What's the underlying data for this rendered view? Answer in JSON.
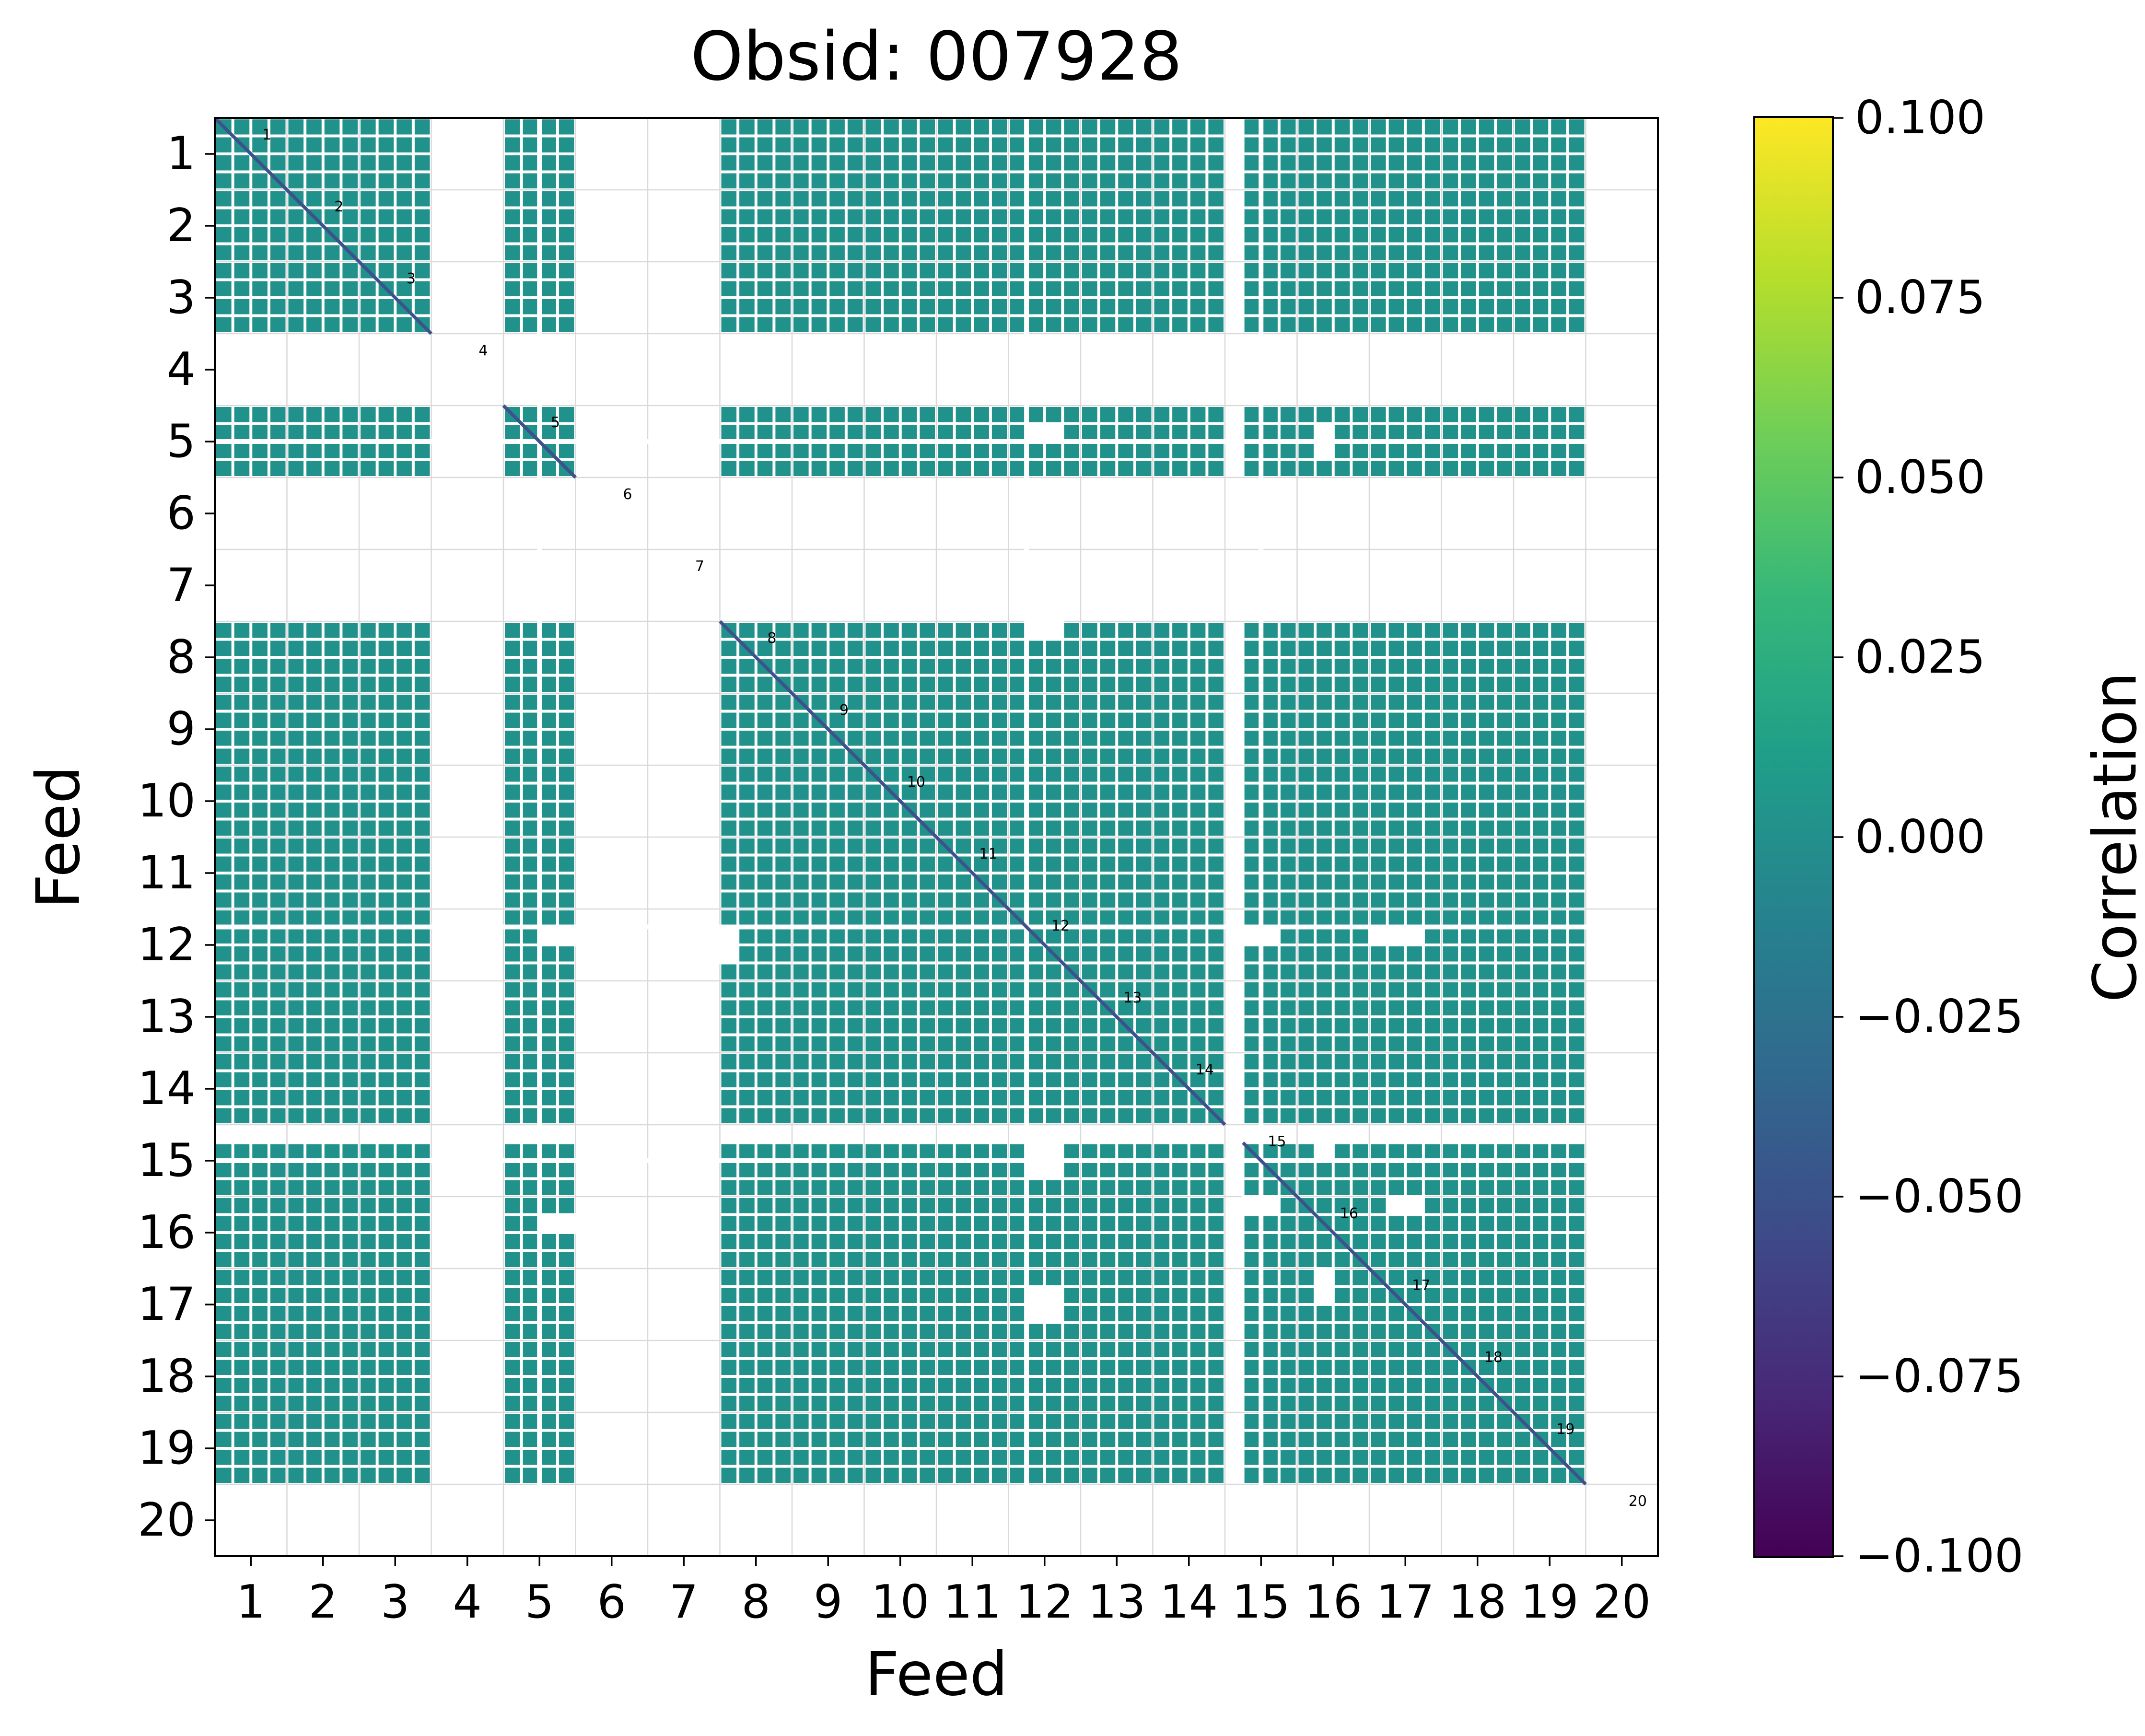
{
  "figure": {
    "title": "Obsid: 007928",
    "xlabel": "Feed",
    "ylabel": "Feed"
  },
  "colorbar": {
    "label": "Correlation",
    "tick_labels": [
      "0.100",
      "0.075",
      "0.050",
      "0.025",
      "0.000",
      "−0.025",
      "−0.050",
      "−0.075",
      "−0.100"
    ],
    "vmax": 0.1,
    "vmin": -0.1,
    "colormap": "viridis",
    "gradient_stops_bottom_to_top": [
      "#440154",
      "#482878",
      "#3e4a89",
      "#31688e",
      "#26828e",
      "#1f9e89",
      "#35b779",
      "#6ece58",
      "#b5de2b",
      "#fde725"
    ]
  },
  "chart_data": {
    "type": "heatmap",
    "title": "Obsid: 007928",
    "xlabel": "Feed",
    "ylabel": "Feed",
    "legend": "Correlation",
    "value_range": [
      -0.1,
      0.1
    ],
    "x_categories": [
      1,
      2,
      3,
      4,
      5,
      6,
      7,
      8,
      9,
      10,
      11,
      12,
      13,
      14,
      15,
      16,
      17,
      18,
      19,
      20
    ],
    "y_categories": [
      1,
      2,
      3,
      4,
      5,
      6,
      7,
      8,
      9,
      10,
      11,
      12,
      13,
      14,
      15,
      16,
      17,
      18,
      19,
      20
    ],
    "subcells_per_feed": 4,
    "present_feeds": [
      1,
      2,
      3,
      5,
      8,
      9,
      10,
      11,
      12,
      13,
      14,
      15,
      16,
      17,
      18,
      19
    ],
    "missing_feeds": [
      4,
      6,
      7,
      20
    ],
    "partial_feeds": {
      "15": {
        "start_subcell": 1,
        "count": 3
      }
    },
    "cell_value": 0.0,
    "cell_color": "#21918c",
    "diagonal_value": -0.05,
    "diagonal_color": "#3b528b",
    "grid_color": "#d9d9d9",
    "diagonal_labels": [
      "1",
      "2",
      "3",
      "4",
      "5",
      "6",
      "7",
      "8",
      "9",
      "10",
      "11",
      "12",
      "13",
      "14",
      "15",
      "16",
      "17",
      "18",
      "19",
      "20"
    ],
    "thin_gap_rows": [
      {
        "feed": 5,
        "subcell": 2
      },
      {
        "feed": 12,
        "subcell": 1
      },
      {
        "feed": 15,
        "subcell": 2
      }
    ],
    "thin_gap_cols": [
      {
        "feed": 5,
        "subcell": 2
      },
      {
        "feed": 12,
        "subcell": 1
      },
      {
        "feed": 15,
        "subcell": 2
      }
    ],
    "missing_patches": [
      {
        "x": 12,
        "y": 5,
        "si": 1,
        "sj": 1,
        "w": 2,
        "h": 1
      },
      {
        "x": 16,
        "y": 5,
        "si": 1,
        "sj": 1,
        "w": 1,
        "h": 2
      },
      {
        "x": 12,
        "y": 8,
        "si": 1,
        "sj": 0,
        "w": 2,
        "h": 1
      },
      {
        "x": 5,
        "y": 12,
        "si": 2,
        "sj": 1,
        "w": 2,
        "h": 1
      },
      {
        "x": 8,
        "y": 12,
        "si": 0,
        "sj": 1,
        "w": 1,
        "h": 2
      },
      {
        "x": 15,
        "y": 12,
        "si": 1,
        "sj": 1,
        "w": 2,
        "h": 1
      },
      {
        "x": 17,
        "y": 12,
        "si": 0,
        "sj": 1,
        "w": 3,
        "h": 1
      },
      {
        "x": 12,
        "y": 15,
        "si": 1,
        "sj": 1,
        "w": 2,
        "h": 2
      },
      {
        "x": 16,
        "y": 15,
        "si": 1,
        "sj": 1,
        "w": 1,
        "h": 1
      },
      {
        "x": 5,
        "y": 16,
        "si": 2,
        "sj": 1,
        "w": 2,
        "h": 1
      },
      {
        "x": 15,
        "y": 16,
        "si": 1,
        "sj": 0,
        "w": 2,
        "h": 1
      },
      {
        "x": 12,
        "y": 17,
        "si": 1,
        "sj": 1,
        "w": 2,
        "h": 2
      },
      {
        "x": 16,
        "y": 17,
        "si": 1,
        "sj": 0,
        "w": 1,
        "h": 2
      },
      {
        "x": 17,
        "y": 16,
        "si": 1,
        "sj": 0,
        "w": 2,
        "h": 1
      }
    ]
  }
}
